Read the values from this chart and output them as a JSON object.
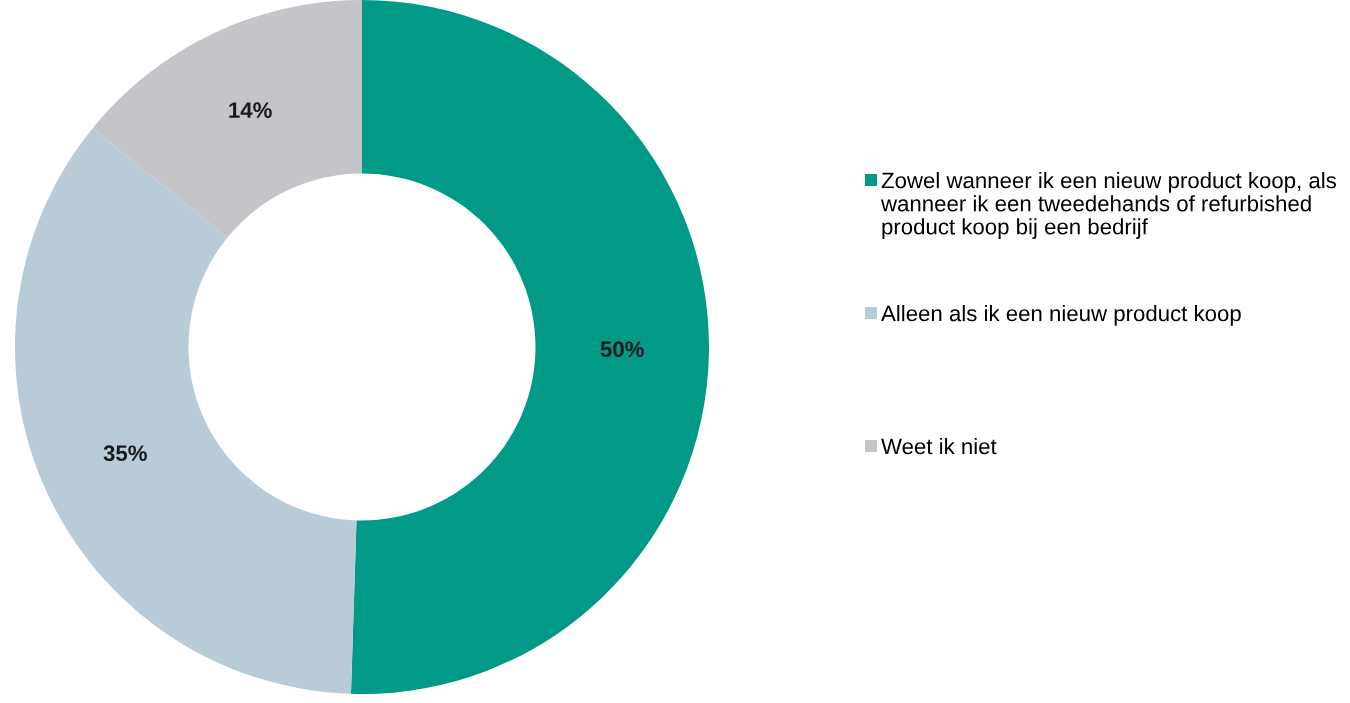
{
  "chart_data": {
    "type": "donut",
    "categories": [
      "Zowel wanneer ik een nieuw product koop, als wanneer ik een tweedehands of refurbished product koop bij een bedrijf",
      "Alleen als ik een nieuw product koop",
      "Weet ik niet"
    ],
    "values": [
      50,
      35,
      14
    ],
    "colors": [
      "#009a87",
      "#b9cbd7",
      "#c5c4c9"
    ],
    "value_labels": [
      "50%",
      "35%",
      "14%"
    ],
    "legend": "right"
  }
}
